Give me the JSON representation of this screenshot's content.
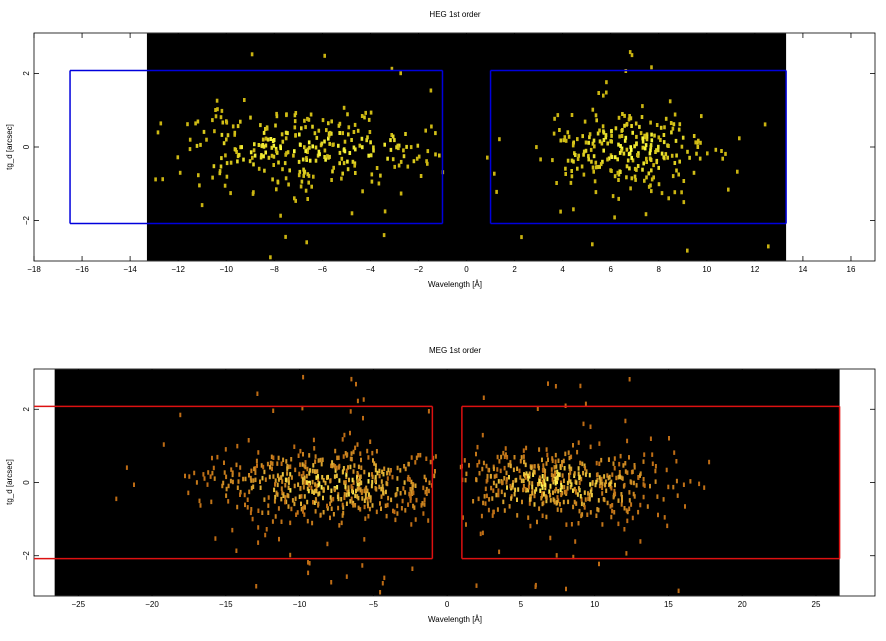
{
  "chart_data": [
    {
      "type": "scatter",
      "title": "HEG 1st order",
      "xlabel": "Wavelength [Å]",
      "ylabel": "tg_d [arcsec]",
      "xlim": [
        -18,
        17
      ],
      "ylim": [
        -3.1,
        3.1
      ],
      "x_ticks": [
        -18,
        -16,
        -14,
        -12,
        -10,
        -8,
        -6,
        -4,
        -2,
        0,
        2,
        4,
        6,
        8,
        10,
        12,
        14,
        16
      ],
      "x_tick_labels": [
        "−18",
        "−16",
        "−14",
        "−12",
        "−10",
        "−8",
        "−6",
        "−4",
        "−2",
        "0",
        "2",
        "4",
        "6",
        "8",
        "10",
        "12",
        "14",
        "16"
      ],
      "y_ticks": [
        -2,
        0,
        2
      ],
      "y_tick_labels": [
        "−2",
        "0",
        "2"
      ],
      "data_extent": [
        -13.3,
        13.3
      ],
      "background": "#000000",
      "point_color_low": "#b89a00",
      "point_color_high": "#ffff40",
      "region_color": "#0000dd",
      "regions": [
        {
          "x": [
            -16.5,
            -1.0
          ],
          "y": [
            -2.08,
            2.08
          ]
        },
        {
          "x": [
            1.0,
            13.3
          ],
          "y": [
            -2.08,
            2.08
          ]
        }
      ],
      "series": [
        {
          "center": -6.5,
          "sigma_x": 3.2,
          "count": 330
        },
        {
          "center": 6.8,
          "sigma_x": 1.8,
          "count": 270
        }
      ],
      "y_sigma": 0.55
    },
    {
      "type": "scatter",
      "title": "MEG 1st order",
      "xlabel": "Wavelength [Å]",
      "ylabel": "tg_d [arcsec]",
      "xlim": [
        -28,
        29
      ],
      "ylim": [
        -3.1,
        3.1
      ],
      "x_ticks": [
        -25,
        -20,
        -15,
        -10,
        -5,
        0,
        5,
        10,
        15,
        20,
        25
      ],
      "x_tick_labels": [
        "−25",
        "−20",
        "−15",
        "−10",
        "−5",
        "0",
        "5",
        "10",
        "15",
        "20",
        "25"
      ],
      "y_ticks": [
        -2,
        0,
        2
      ],
      "y_tick_labels": [
        "−2",
        "0",
        "2"
      ],
      "data_extent": [
        -26.6,
        26.6
      ],
      "background": "#000000",
      "point_color_low": "#a84000",
      "point_color_high": "#ffee50",
      "region_color": "#dd1111",
      "regions": [
        {
          "x": [
            -33,
            -1.0
          ],
          "y": [
            -2.08,
            2.08
          ]
        },
        {
          "x": [
            1.0,
            26.6
          ],
          "y": [
            -2.08,
            2.08
          ]
        }
      ],
      "series": [
        {
          "center": -8.0,
          "sigma_x": 4.2,
          "count": 560
        },
        {
          "center": 7.5,
          "sigma_x": 3.8,
          "count": 520
        }
      ],
      "y_sigma": 0.5
    }
  ]
}
